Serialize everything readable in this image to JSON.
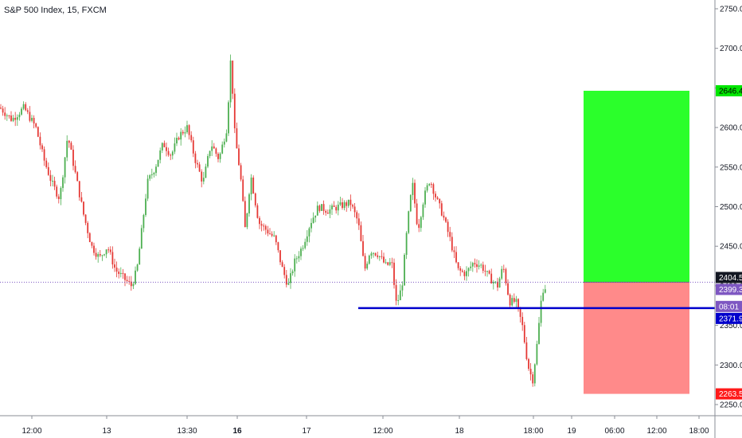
{
  "header": {
    "title": "S&P 500 Index, 15, FXCM"
  },
  "colors": {
    "up": "#26a69a",
    "down": "#ef5350",
    "up_candle": "#4caf50",
    "down_candle": "#e53935",
    "target_zone": "#2bff2b",
    "stop_zone": "#ff8a8a",
    "level_line": "#0000cc",
    "last_price_bg": "#131722",
    "time_tag_bg": "#7e57c2",
    "level_tag_bg": "#0000cc",
    "target_tag_bg": "#00e600",
    "stop_tag_bg": "#ff1a1a",
    "axis_text": "#131722"
  },
  "chart_data": {
    "type": "candlestick",
    "title": "S&P 500 Index, 15, FXCM",
    "y_axis": {
      "ticks": [
        "2750.0",
        "2700.0",
        "2650.0",
        "2600.0",
        "2550.0",
        "2500.0",
        "2450.0",
        "2400.0",
        "2350.0",
        "2300.0",
        "2250.0"
      ],
      "ylim": [
        2240,
        2760
      ]
    },
    "x_axis": {
      "ticks": [
        {
          "label": "12:00",
          "bold": false
        },
        {
          "label": "13",
          "bold": false
        },
        {
          "label": "13:30",
          "bold": false
        },
        {
          "label": "16",
          "bold": true
        },
        {
          "label": "17",
          "bold": false
        },
        {
          "label": "12:00",
          "bold": false
        },
        {
          "label": "18",
          "bold": false
        },
        {
          "label": "18:00",
          "bold": false
        },
        {
          "label": "19",
          "bold": false
        },
        {
          "label": "06:00",
          "bold": false
        },
        {
          "label": "12:00",
          "bold": false
        },
        {
          "label": "18:00",
          "bold": false
        }
      ]
    },
    "price_path": [
      [
        0,
        2625
      ],
      [
        15,
        2610
      ],
      [
        30,
        2625
      ],
      [
        45,
        2600
      ],
      [
        55,
        2560
      ],
      [
        65,
        2530
      ],
      [
        75,
        2510
      ],
      [
        85,
        2590
      ],
      [
        95,
        2540
      ],
      [
        105,
        2490
      ],
      [
        115,
        2450
      ],
      [
        125,
        2435
      ],
      [
        135,
        2450
      ],
      [
        145,
        2420
      ],
      [
        155,
        2410
      ],
      [
        165,
        2400
      ],
      [
        172,
        2420
      ],
      [
        178,
        2470
      ],
      [
        185,
        2530
      ],
      [
        195,
        2550
      ],
      [
        205,
        2580
      ],
      [
        215,
        2565
      ],
      [
        225,
        2590
      ],
      [
        235,
        2600
      ],
      [
        245,
        2560
      ],
      [
        255,
        2530
      ],
      [
        265,
        2580
      ],
      [
        275,
        2560
      ],
      [
        285,
        2600
      ],
      [
        290,
        2690
      ],
      [
        295,
        2590
      ],
      [
        302,
        2540
      ],
      [
        308,
        2470
      ],
      [
        315,
        2540
      ],
      [
        325,
        2480
      ],
      [
        335,
        2470
      ],
      [
        345,
        2460
      ],
      [
        355,
        2420
      ],
      [
        362,
        2400
      ],
      [
        370,
        2430
      ],
      [
        380,
        2450
      ],
      [
        390,
        2480
      ],
      [
        400,
        2500
      ],
      [
        412,
        2495
      ],
      [
        425,
        2500
      ],
      [
        440,
        2505
      ],
      [
        450,
        2480
      ],
      [
        458,
        2420
      ],
      [
        465,
        2445
      ],
      [
        475,
        2440
      ],
      [
        485,
        2425
      ],
      [
        492,
        2430
      ],
      [
        498,
        2375
      ],
      [
        505,
        2400
      ],
      [
        512,
        2480
      ],
      [
        518,
        2530
      ],
      [
        525,
        2470
      ],
      [
        532,
        2510
      ],
      [
        540,
        2535
      ],
      [
        548,
        2510
      ],
      [
        556,
        2490
      ],
      [
        565,
        2460
      ],
      [
        575,
        2420
      ],
      [
        585,
        2415
      ],
      [
        595,
        2430
      ],
      [
        605,
        2425
      ],
      [
        615,
        2410
      ],
      [
        625,
        2400
      ],
      [
        632,
        2425
      ],
      [
        640,
        2380
      ],
      [
        648,
        2380
      ],
      [
        656,
        2350
      ],
      [
        663,
        2300
      ],
      [
        669,
        2280
      ],
      [
        675,
        2330
      ],
      [
        681,
        2395
      ],
      [
        686,
        2399
      ]
    ],
    "last_price": "2404.5",
    "current_price": "2399.3",
    "candle_timer": "08:01",
    "support_level": "2371.9",
    "target_price": "2646.4",
    "stop_price": "2263.5",
    "position": {
      "entry": 2404.5,
      "target": 2646.4,
      "stop": 2263.5
    }
  }
}
